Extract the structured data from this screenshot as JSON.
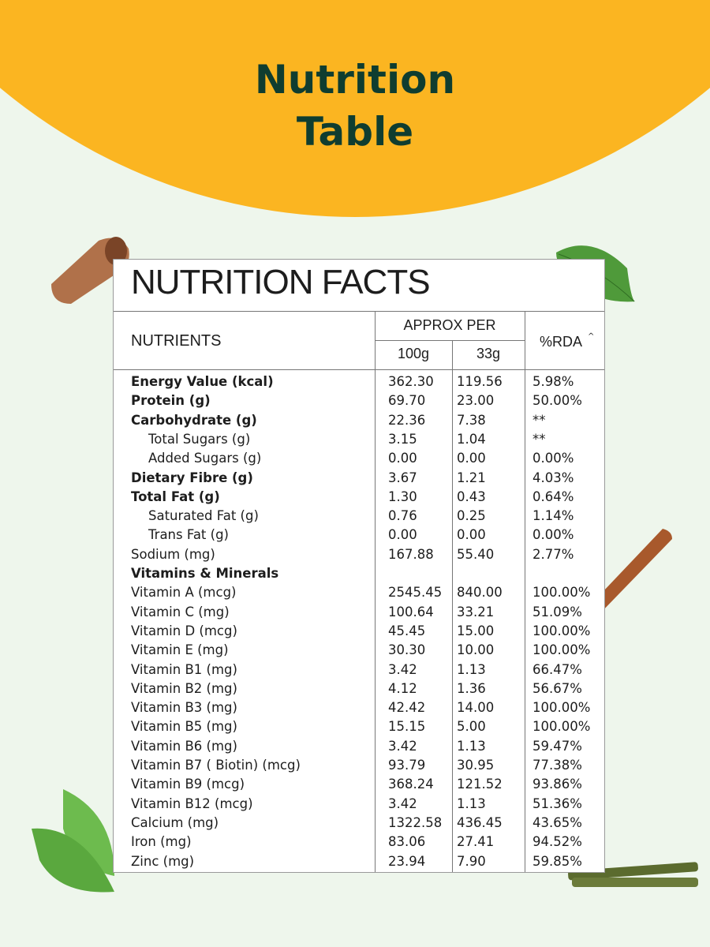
{
  "header": {
    "title": "Nutrition Table"
  },
  "table": {
    "heading": "NUTRITION FACTS",
    "columns": {
      "nutrients": "NUTRIENTS",
      "approx_per": "APPROX PER",
      "per_100g": "100g",
      "per_33g": "33g",
      "rda": "%RDA",
      "rda_note": "^"
    },
    "rows": [
      {
        "nutrient": "Energy Value (kcal)",
        "per_100g": "362.30",
        "per_33g": "119.56",
        "rda": "5.98%",
        "style": "bold"
      },
      {
        "nutrient": "Protein (g)",
        "per_100g": "69.70",
        "per_33g": "23.00",
        "rda": "50.00%",
        "style": "bold"
      },
      {
        "nutrient": "Carbohydrate (g)",
        "per_100g": "22.36",
        "per_33g": "7.38",
        "rda": "**",
        "style": "bold"
      },
      {
        "nutrient": "Total Sugars (g)",
        "per_100g": "3.15",
        "per_33g": "1.04",
        "rda": "**",
        "style": "indent"
      },
      {
        "nutrient": "Added Sugars (g)",
        "per_100g": "0.00",
        "per_33g": "0.00",
        "rda": "0.00%",
        "style": "indent"
      },
      {
        "nutrient": "Dietary Fibre (g)",
        "per_100g": "3.67",
        "per_33g": "1.21",
        "rda": "4.03%",
        "style": "bold"
      },
      {
        "nutrient": "Total Fat (g)",
        "per_100g": "1.30",
        "per_33g": "0.43",
        "rda": "0.64%",
        "style": "bold"
      },
      {
        "nutrient": "Saturated Fat (g)",
        "per_100g": "0.76",
        "per_33g": "0.25",
        "rda": "1.14%",
        "style": "indent"
      },
      {
        "nutrient": "Trans Fat (g)",
        "per_100g": "0.00",
        "per_33g": "0.00",
        "rda": "0.00%",
        "style": "indent"
      },
      {
        "nutrient": "Sodium (mg)",
        "per_100g": "167.88",
        "per_33g": "55.40",
        "rda": "2.77%",
        "style": "normal"
      },
      {
        "nutrient": "Vitamins & Minerals",
        "style": "bold"
      },
      {
        "nutrient": "Vitamin A (mcg)",
        "per_100g": "2545.45",
        "per_33g": "840.00",
        "rda": "100.00%",
        "style": "normal"
      },
      {
        "nutrient": "Vitamin C (mg)",
        "per_100g": "100.64",
        "per_33g": "33.21",
        "rda": "51.09%",
        "style": "normal"
      },
      {
        "nutrient": "Vitamin D (mcg)",
        "per_100g": "45.45",
        "per_33g": "15.00",
        "rda": "100.00%",
        "style": "normal"
      },
      {
        "nutrient": "Vitamin E (mg)",
        "per_100g": "30.30",
        "per_33g": "10.00",
        "rda": "100.00%",
        "style": "normal"
      },
      {
        "nutrient": "Vitamin B1 (mg)",
        "per_100g": "3.42",
        "per_33g": "1.13",
        "rda": "66.47%",
        "style": "normal"
      },
      {
        "nutrient": "Vitamin B2 (mg)",
        "per_100g": "4.12",
        "per_33g": "1.36",
        "rda": "56.67%",
        "style": "normal"
      },
      {
        "nutrient": "Vitamin B3 (mg)",
        "per_100g": "42.42",
        "per_33g": "14.00",
        "rda": "100.00%",
        "style": "normal"
      },
      {
        "nutrient": "Vitamin B5 (mg)",
        "per_100g": "15.15",
        "per_33g": "5.00",
        "rda": "100.00%",
        "style": "normal"
      },
      {
        "nutrient": "Vitamin B6 (mg)",
        "per_100g": "3.42",
        "per_33g": "1.13",
        "rda": "59.47%",
        "style": "normal"
      },
      {
        "nutrient": "Vitamin B7 ( Biotin) (mcg)",
        "per_100g": "93.79",
        "per_33g": "30.95",
        "rda": "77.38%",
        "style": "normal"
      },
      {
        "nutrient": "Vitamin B9 (mcg)",
        "per_100g": "368.24",
        "per_33g": "121.52",
        "rda": "93.86%",
        "style": "normal"
      },
      {
        "nutrient": "Vitamin B12 (mcg)",
        "per_100g": "3.42",
        "per_33g": "1.13",
        "rda": "51.36%",
        "style": "normal"
      },
      {
        "nutrient": "Calcium (mg)",
        "per_100g": "1322.58",
        "per_33g": "436.45",
        "rda": "43.65%",
        "style": "normal"
      },
      {
        "nutrient": "Iron (mg)",
        "per_100g": "83.06",
        "per_33g": "27.41",
        "rda": "94.52%",
        "style": "normal"
      },
      {
        "nutrient": "Zinc (mg)",
        "per_100g": "23.94",
        "per_33g": "7.90",
        "rda": "59.85%",
        "style": "normal"
      }
    ]
  }
}
